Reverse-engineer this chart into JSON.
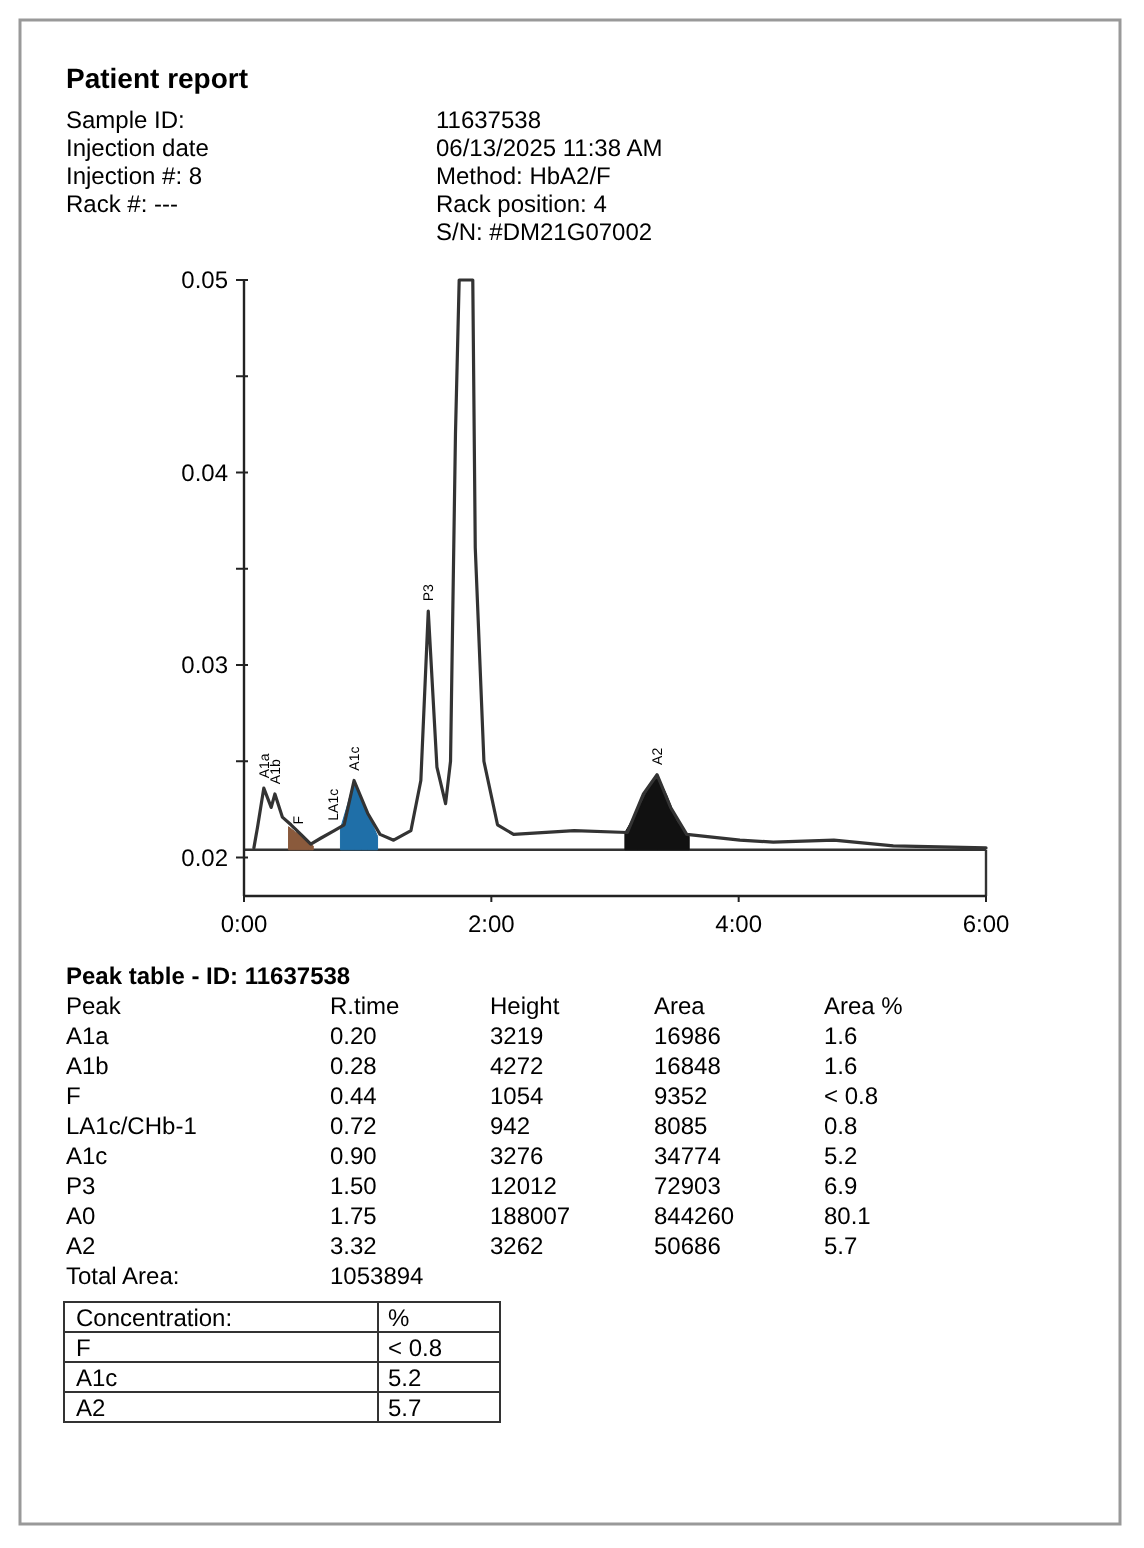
{
  "chart_data": {
    "type": "line",
    "title": "Patient report",
    "xlim": [
      0,
      6
    ],
    "xticks": [
      {
        "value": 0,
        "label": "0:00"
      },
      {
        "value": 2,
        "label": "2:00"
      },
      {
        "value": 4,
        "label": "4:00"
      },
      {
        "value": 6,
        "label": "6:00"
      }
    ],
    "ylim": [
      0.018,
      0.05
    ],
    "yticks": [
      0.02,
      {
        "value": 0.025,
        "label": null
      },
      0.03,
      {
        "value": 0.035,
        "label": null
      },
      0.04,
      {
        "value": 0.045,
        "label": null
      },
      0.05
    ],
    "line_style": "solid",
    "marker": "none",
    "ref_lines": [
      {
        "axis": "y",
        "value": 0.0204,
        "color": "#333333"
      }
    ],
    "series": [
      {
        "type": "area",
        "color": "#8a5a3c",
        "x": [
          0.36,
          0.42,
          0.46,
          0.52,
          0.56
        ],
        "values": [
          0.0216,
          0.0213,
          0.0212,
          0.0208,
          0.0206
        ]
      },
      {
        "type": "area",
        "color": "#1f6fa8",
        "x": [
          0.78,
          0.84,
          0.89,
          0.95,
          1.0,
          1.08
        ],
        "values": [
          0.0215,
          0.0228,
          0.024,
          0.0231,
          0.0223,
          0.0211
        ]
      },
      {
        "type": "area",
        "color": "#111111",
        "x": [
          3.08,
          3.18,
          3.26,
          3.34,
          3.42,
          3.5,
          3.6
        ],
        "values": [
          0.0213,
          0.0224,
          0.0235,
          0.0243,
          0.0232,
          0.0219,
          0.0211
        ]
      },
      {
        "color": "#333333",
        "x": [
          0.08,
          0.11,
          0.16,
          0.22,
          0.25,
          0.31,
          0.38,
          0.46,
          0.54,
          0.62,
          0.73,
          0.81,
          0.89,
          1.0,
          1.1,
          1.21,
          1.35,
          1.43,
          1.49,
          1.56,
          1.63,
          1.67,
          1.71,
          1.74,
          1.85,
          1.87,
          1.94,
          2.05,
          2.18,
          2.67,
          3.1,
          3.23,
          3.34,
          3.45,
          3.58,
          4.01,
          4.28,
          4.77,
          5.25,
          6.0
        ],
        "values": [
          0.0205,
          0.0216,
          0.0236,
          0.0226,
          0.0233,
          0.0221,
          0.0217,
          0.0212,
          0.0207,
          0.021,
          0.0214,
          0.0217,
          0.024,
          0.0223,
          0.0212,
          0.0209,
          0.0214,
          0.024,
          0.0328,
          0.0247,
          0.0228,
          0.025,
          0.042,
          0.05,
          0.05,
          0.0361,
          0.025,
          0.0217,
          0.0212,
          0.0214,
          0.0213,
          0.0233,
          0.0243,
          0.0226,
          0.0212,
          0.0209,
          0.0208,
          0.0209,
          0.0206,
          0.0205
        ]
      }
    ],
    "annotations": [
      {
        "text": "A1a",
        "x": 0.16,
        "y": 0.0238
      },
      {
        "text": "A1b",
        "x": 0.25,
        "y": 0.0235
      },
      {
        "text": "F",
        "x": 0.44,
        "y": 0.0214
      },
      {
        "text": "LA1c",
        "x": 0.72,
        "y": 0.0216
      },
      {
        "text": "A1c",
        "x": 0.89,
        "y": 0.0242
      },
      {
        "text": "P3",
        "x": 1.49,
        "y": 0.033
      },
      {
        "text": "A2",
        "x": 3.34,
        "y": 0.0245
      },
      "Sample ID:",
      "11637538",
      "Injection date",
      "06/13/2025 11:38 AM",
      "Injection #: 8",
      "Method: HbA2/F",
      "Rack #: ---",
      "Rack position: 4",
      "S/N: #DM21G07002",
      "Peak table - ID: 11637538",
      "Peak",
      "R.time",
      "Height",
      "Area",
      "Area %",
      "A1a",
      "0.20",
      "3219",
      "16986",
      "1.6",
      "A1b",
      "0.28",
      "4272",
      "16848",
      "1.6",
      "F",
      "0.44",
      "1054",
      "9352",
      "< 0.8",
      "LA1c/CHb-1",
      "0.72",
      "942",
      "8085",
      "0.8",
      "A1c",
      "0.90",
      "3276",
      "34774",
      "5.2",
      "P3",
      "1.50",
      "12012",
      "72903",
      "6.9",
      "A0",
      "1.75",
      "188007",
      "844260",
      "80.1",
      "A2",
      "3.32",
      "3262",
      "50686",
      "5.7",
      "Total Area:",
      "1053894",
      "Concentration:",
      "%",
      "F",
      "< 0.8",
      "A1c",
      "5.2",
      "A2",
      "5.7"
    ]
  }
}
